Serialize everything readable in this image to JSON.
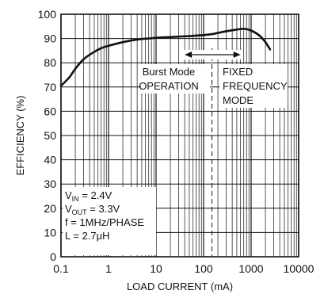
{
  "chart_data": {
    "type": "line",
    "title": "",
    "xlabel": "LOAD CURRENT (mA)",
    "ylabel": "EFFICIENCY (%)",
    "xscale": "log",
    "xlim": [
      0.1,
      10000
    ],
    "ylim": [
      0,
      100
    ],
    "grid": true,
    "x_ticks": [
      "0.1",
      "1",
      "10",
      "100",
      "1000",
      "10000"
    ],
    "y_ticks": [
      "0",
      "10",
      "20",
      "30",
      "40",
      "50",
      "60",
      "70",
      "80",
      "90",
      "100"
    ],
    "series": [
      {
        "x": [
          0.1,
          0.15,
          0.2,
          0.3,
          0.5,
          0.7,
          1,
          2,
          3,
          5,
          7,
          10,
          20,
          30,
          50,
          70,
          100,
          150,
          200,
          300,
          500,
          700,
          1000,
          1500,
          2000,
          2500
        ],
        "y": [
          70.5,
          74,
          77.5,
          81.5,
          84.5,
          86,
          87,
          88.5,
          89.2,
          89.8,
          90,
          90.3,
          90.6,
          90.8,
          91,
          91.2,
          91.4,
          91.8,
          92.3,
          93,
          93.7,
          94,
          93.3,
          91.2,
          88.5,
          85.5
        ],
        "color": "#111111"
      }
    ],
    "annotations": {
      "burst_mode": [
        "Burst Mode",
        "OPERATION"
      ],
      "fixed_frequency": [
        "FIXED",
        "FREQUENCY",
        "MODE"
      ],
      "boundary_x": 150,
      "arrow_span": [
        40,
        600
      ]
    },
    "conditions": {
      "vin_main": "V",
      "vin_sub": "IN",
      "vin_value": " = 2.4V",
      "vout_main": "V",
      "vout_sub": "OUT",
      "vout_value": " = 3.3V",
      "freq": "f = 1MHz/PHASE",
      "inductor": "L = 2.7μH"
    }
  }
}
